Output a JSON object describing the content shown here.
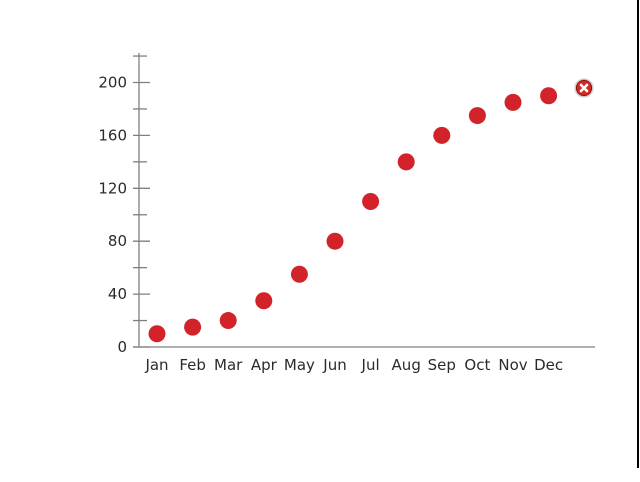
{
  "chart_data": {
    "type": "scatter",
    "categories": [
      "Jan",
      "Feb",
      "Mar",
      "Apr",
      "May",
      "Jun",
      "Jul",
      "Aug",
      "Sep",
      "Oct",
      "Nov",
      "Dec"
    ],
    "values": [
      10,
      15,
      20,
      35,
      55,
      80,
      110,
      140,
      160,
      175,
      185,
      190
    ],
    "title": "",
    "xlabel": "",
    "ylabel": "",
    "ylim": [
      0,
      222
    ],
    "y_major_ticks": [
      0,
      40,
      80,
      120,
      160,
      200
    ],
    "y_minor_step": 20,
    "grid": false,
    "legend": "none",
    "point_color": "#d2232a",
    "axis_color": "#7f7f7f",
    "label_color": "#2b2b2b"
  },
  "controls": {
    "delete_icon": "circle-x-delete-control",
    "delete_icon_fill": "#d42a24",
    "delete_icon_ring": "#9c1313",
    "delete_icon_outer_ring": "#c8c8c8",
    "delete_icon_glyph_color": "#ffffff"
  },
  "window": {
    "right_border_color": "#000000"
  }
}
